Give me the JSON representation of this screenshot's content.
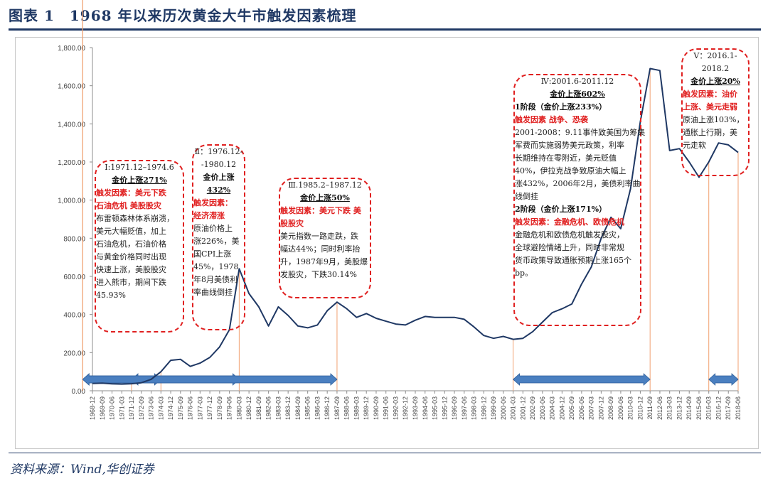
{
  "title": "图表 1　1968 年以来历次黄金大牛市触发因素梳理",
  "source": "资料来源：Wind,华创证券",
  "colors": {
    "line": "#1f3864",
    "arrow": "#4a7fc0",
    "guide": "#f0a070",
    "dash": "#e02020",
    "title": "#1f3864"
  },
  "chart_data": {
    "type": "line",
    "title": "",
    "xlabel": "",
    "ylabel": "",
    "ylim": [
      0,
      1800
    ],
    "yticks": [
      "0.00",
      "200.00",
      "400.00",
      "600.00",
      "800.00",
      "1,000.00",
      "1,200.00",
      "1,400.00",
      "1,600.00",
      "1,800.00"
    ],
    "x": [
      "1968-12",
      "1969-09",
      "1970-06",
      "1971-03",
      "1971-12",
      "1972-09",
      "1973-06",
      "1974-03",
      "1974-12",
      "1975-09",
      "1976-06",
      "1977-03",
      "1977-12",
      "1978-09",
      "1979-06",
      "1980-03",
      "1980-12",
      "1981-09",
      "1982-06",
      "1983-03",
      "1983-12",
      "1984-09",
      "1985-06",
      "1986-03",
      "1986-12",
      "1987-09",
      "1988-06",
      "1989-03",
      "1989-12",
      "1990-09",
      "1991-06",
      "1992-03",
      "1992-12",
      "1993-09",
      "1994-06",
      "1995-03",
      "1995-12",
      "1996-09",
      "1997-06",
      "1998-03",
      "1998-12",
      "1999-09",
      "2000-06",
      "2001-03",
      "2001-12",
      "2002-09",
      "2003-06",
      "2004-03",
      "2004-12",
      "2005-09",
      "2006-06",
      "2007-03",
      "2007-12",
      "2008-09",
      "2009-06",
      "2010-03",
      "2010-12",
      "2011-09",
      "2012-06",
      "2013-03",
      "2013-12",
      "2014-09",
      "2015-06",
      "2016-03",
      "2016-12",
      "2017-09",
      "2018-06"
    ],
    "series": [
      {
        "name": "金价",
        "values": [
          38,
          40,
          36,
          35,
          37,
          42,
          60,
          100,
          160,
          165,
          128,
          145,
          175,
          230,
          320,
          640,
          510,
          440,
          340,
          440,
          395,
          340,
          330,
          345,
          420,
          465,
          430,
          385,
          405,
          380,
          365,
          350,
          345,
          370,
          390,
          385,
          385,
          385,
          375,
          335,
          290,
          275,
          285,
          270,
          275,
          310,
          360,
          410,
          430,
          455,
          560,
          650,
          800,
          910,
          850,
          1060,
          1410,
          1690,
          1680,
          1260,
          1270,
          1200,
          1120,
          1200,
          1300,
          1290,
          1250
        ]
      }
    ],
    "highlight_ranges": [
      {
        "label": "I",
        "from": "1971-12",
        "to": "1974-03"
      },
      {
        "label": "II",
        "from": "1976-12",
        "to": "1980-03"
      },
      {
        "label": "III",
        "from": "1985-03",
        "to": "1987-09"
      },
      {
        "label": "IV",
        "from": "2001-03",
        "to": "2011-09"
      },
      {
        "label": "V",
        "from": "2016-03",
        "to": "2018-06"
      }
    ]
  },
  "annotations": [
    {
      "id": "I",
      "lines": [
        {
          "t": "Ⅰ:1971.12–1974.6",
          "cls": "hdr"
        },
        {
          "t": "金价上涨271%",
          "cls": "bold ul"
        },
        {
          "t": "触发因素：美元下跌",
          "cls": "red"
        },
        {
          "t": "石油危机 美股股灾",
          "cls": "red"
        },
        {
          "t": "布雷顿森林体系崩溃，",
          "cls": ""
        },
        {
          "t": "美元大幅贬值，加上",
          "cls": ""
        },
        {
          "t": "石油危机，石油价格",
          "cls": ""
        },
        {
          "t": "与黄金价格同时出现",
          "cls": ""
        },
        {
          "t": "快速上涨，美股股灾",
          "cls": ""
        },
        {
          "t": "进入熊市，期间下跌",
          "cls": ""
        },
        {
          "t": "45.93%",
          "cls": ""
        }
      ]
    },
    {
      "id": "II",
      "lines": [
        {
          "t": "Ⅱ：1976.12-",
          "cls": "hdr"
        },
        {
          "t": "-1980.12",
          "cls": "hdr"
        },
        {
          "t": "金价上涨",
          "cls": "bold"
        },
        {
          "t": "432%",
          "cls": "bold ul"
        },
        {
          "t": "触发因素：",
          "cls": "red"
        },
        {
          "t": "经济滞涨",
          "cls": "red"
        },
        {
          "t": "原油价格上",
          "cls": ""
        },
        {
          "t": "涨226%，美",
          "cls": ""
        },
        {
          "t": "国CPI上涨",
          "cls": ""
        },
        {
          "t": "45%，1978",
          "cls": ""
        },
        {
          "t": "年8月美债利",
          "cls": ""
        },
        {
          "t": "率曲线倒挂",
          "cls": ""
        }
      ]
    },
    {
      "id": "III",
      "lines": [
        {
          "t": "Ⅲ.1985.2–1987.12",
          "cls": "hdr"
        },
        {
          "t": "金价上涨50%",
          "cls": "bold ul"
        },
        {
          "t": "触发因素：美元下跌 美",
          "cls": "red"
        },
        {
          "t": "股股灾",
          "cls": "red"
        },
        {
          "t": "美元指数一路走跌，跌",
          "cls": ""
        },
        {
          "t": "幅达44%；同时利率抬",
          "cls": ""
        },
        {
          "t": "升，1987年9月，美股爆",
          "cls": ""
        },
        {
          "t": "发股灾，下跌30.14%",
          "cls": ""
        }
      ]
    },
    {
      "id": "IV",
      "lines": [
        {
          "t": "Ⅳ:2001.6-2011.12",
          "cls": "hdr"
        },
        {
          "t": "金价上涨602%",
          "cls": "bold ul"
        },
        {
          "t": "1阶段（金价上涨233%）",
          "cls": "bold-left"
        },
        {
          "t": "触发因素 战争、恐袭",
          "cls": "red"
        },
        {
          "t": "2001-2008：9.11事件致美国为筹集",
          "cls": ""
        },
        {
          "t": "军费而实施弱势美元政策，利率",
          "cls": ""
        },
        {
          "t": "长期维持在零附近，美元贬值",
          "cls": ""
        },
        {
          "t": "40%，伊拉克战争致原油大幅上",
          "cls": ""
        },
        {
          "t": "涨432%，2006年2月，美债利率曲",
          "cls": ""
        },
        {
          "t": "线倒挂",
          "cls": ""
        },
        {
          "t": "2阶段（金价上涨171%）",
          "cls": "bold-left"
        },
        {
          "t": "触发因素：金融危机、欧债危机",
          "cls": "red"
        },
        {
          "t": "金融危机和欧债危机触发股灾，",
          "cls": ""
        },
        {
          "t": "全球避险情绪上升，同时非常规",
          "cls": ""
        },
        {
          "t": "货币政策导致通胀预期上涨165个",
          "cls": ""
        },
        {
          "t": "bp。",
          "cls": ""
        }
      ]
    },
    {
      "id": "V",
      "lines": [
        {
          "t": "Ⅴ：2016.1-",
          "cls": "hdr"
        },
        {
          "t": "2018.2",
          "cls": "hdr"
        },
        {
          "t": "金价上涨20%",
          "cls": "bold ul"
        },
        {
          "t": "触发因素：油价",
          "cls": "red"
        },
        {
          "t": "上涨、美元走弱",
          "cls": "red"
        },
        {
          "t": "原油上涨103%，",
          "cls": ""
        },
        {
          "t": "通胀上行期，美",
          "cls": ""
        },
        {
          "t": "元走软",
          "cls": ""
        }
      ]
    }
  ]
}
